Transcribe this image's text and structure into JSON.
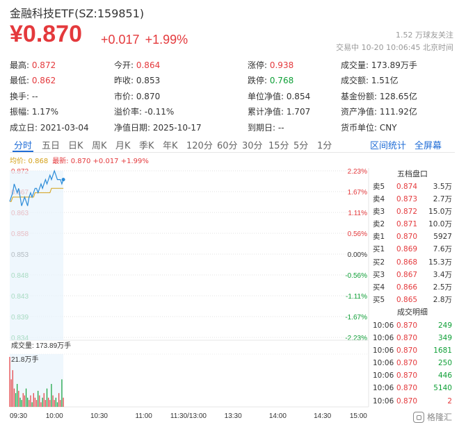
{
  "header": {
    "title": "金融科技ETF(SZ:159851)",
    "price": "¥0.870",
    "change": "+0.017",
    "change_pct": "+1.99%",
    "fans": "1.52 万球友关注",
    "status": "交易中 10-20 10:06:45 北京时间"
  },
  "stats": [
    [
      {
        "label": "最高:",
        "value": "0.872",
        "color": "red"
      },
      {
        "label": "今开:",
        "value": "0.864",
        "color": "red"
      },
      {
        "label": "涨停:",
        "value": "0.938",
        "color": "red"
      },
      {
        "label": "成交量:",
        "value": "173.89万手",
        "color": ""
      }
    ],
    [
      {
        "label": "最低:",
        "value": "0.862",
        "color": "red"
      },
      {
        "label": "昨收:",
        "value": "0.853",
        "color": ""
      },
      {
        "label": "跌停:",
        "value": "0.768",
        "color": "green"
      },
      {
        "label": "成交额:",
        "value": "1.51亿",
        "color": ""
      }
    ],
    [
      {
        "label": "换手:",
        "value": "--",
        "color": ""
      },
      {
        "label": "市价:",
        "value": "0.870",
        "color": ""
      },
      {
        "label": "单位净值:",
        "value": "0.854",
        "color": ""
      },
      {
        "label": "基金份额:",
        "value": "128.65亿",
        "color": ""
      }
    ],
    [
      {
        "label": "振幅:",
        "value": "1.17%",
        "color": ""
      },
      {
        "label": "溢价率:",
        "value": "-0.11%",
        "color": ""
      },
      {
        "label": "累计净值:",
        "value": "1.707",
        "color": ""
      },
      {
        "label": "资产净值:",
        "value": "111.92亿",
        "color": ""
      }
    ],
    [
      {
        "label": "成立日:",
        "value": "2021-03-04",
        "color": ""
      },
      {
        "label": "净值日期:",
        "value": "2025-10-17",
        "color": ""
      },
      {
        "label": "到期日:",
        "value": "--",
        "color": ""
      },
      {
        "label": "货币单位:",
        "value": "CNY",
        "color": ""
      }
    ]
  ],
  "tabs": [
    "分时",
    "五日",
    "日K",
    "周K",
    "月K",
    "季K",
    "年K",
    "120分",
    "60分",
    "30分",
    "15分",
    "5分",
    "1分"
  ],
  "tabs_right": [
    "区间统计",
    "全屏幕"
  ],
  "legend": {
    "avg": "均价: 0.868",
    "latest": "最新: 0.870 +0.017 +1.99%"
  },
  "chart_data": {
    "type": "line",
    "y_left_ticks": [
      "0.872",
      "0.867",
      "0.863",
      "0.858",
      "0.853",
      "0.848",
      "0.843",
      "0.839",
      "0.834"
    ],
    "y_right_ticks": [
      "2.23%",
      "1.67%",
      "1.11%",
      "0.56%",
      "0.00%",
      "-0.56%",
      "-1.11%",
      "-1.67%",
      "-2.23%"
    ],
    "x_ticks": [
      "09:30",
      "10:00",
      "10:30",
      "11:00",
      "11:30/13:00",
      "13:30",
      "14:00",
      "14:30",
      "15:00"
    ],
    "ylim": [
      0.834,
      0.872
    ],
    "prev_close": 0.853,
    "price_series": [
      0.865,
      0.866,
      0.867,
      0.869,
      0.868,
      0.867,
      0.868,
      0.866,
      0.864,
      0.865,
      0.866,
      0.865,
      0.864,
      0.866,
      0.867,
      0.866,
      0.867,
      0.868,
      0.868,
      0.867,
      0.868,
      0.869,
      0.868,
      0.869,
      0.87,
      0.869,
      0.87,
      0.871,
      0.87,
      0.871,
      0.872,
      0.871,
      0.87,
      0.87,
      0.87,
      0.869,
      0.87
    ],
    "avg_series": [
      0.865,
      0.865,
      0.866,
      0.866,
      0.866,
      0.866,
      0.866,
      0.866,
      0.866,
      0.866,
      0.866,
      0.866,
      0.866,
      0.866,
      0.866,
      0.866,
      0.866,
      0.867,
      0.867,
      0.867,
      0.867,
      0.867,
      0.867,
      0.867,
      0.867,
      0.867,
      0.867,
      0.867,
      0.868,
      0.868,
      0.868,
      0.868,
      0.868,
      0.868,
      0.868,
      0.868,
      0.868
    ],
    "volume_label": "成交量: 173.89万手",
    "volume_max_label": "21.8万手",
    "volume_series": [
      21.8,
      12,
      16,
      8,
      6,
      10,
      7,
      4,
      3,
      6,
      5,
      8,
      4,
      3,
      5,
      2,
      6,
      4,
      3,
      7,
      5,
      2,
      4,
      6,
      3,
      8,
      4,
      3,
      10,
      5,
      3,
      4,
      2,
      6,
      3,
      12,
      4
    ]
  },
  "orderbook": {
    "title": "五档盘口",
    "rows": [
      {
        "k": "卖5",
        "p": "0.874",
        "v": "3.5万"
      },
      {
        "k": "卖4",
        "p": "0.873",
        "v": "2.7万"
      },
      {
        "k": "卖3",
        "p": "0.872",
        "v": "15.0万"
      },
      {
        "k": "卖2",
        "p": "0.871",
        "v": "10.0万"
      },
      {
        "k": "卖1",
        "p": "0.870",
        "v": "5927"
      },
      {
        "k": "买1",
        "p": "0.869",
        "v": "7.6万"
      },
      {
        "k": "买2",
        "p": "0.868",
        "v": "15.3万"
      },
      {
        "k": "买3",
        "p": "0.867",
        "v": "3.4万"
      },
      {
        "k": "买4",
        "p": "0.866",
        "v": "2.5万"
      },
      {
        "k": "买5",
        "p": "0.865",
        "v": "2.8万"
      }
    ]
  },
  "trades": {
    "title": "成交明细",
    "rows": [
      {
        "t": "10:06",
        "p": "0.870",
        "v": "249",
        "c": "green"
      },
      {
        "t": "10:06",
        "p": "0.870",
        "v": "349",
        "c": "green"
      },
      {
        "t": "10:06",
        "p": "0.870",
        "v": "1681",
        "c": "green"
      },
      {
        "t": "10:06",
        "p": "0.870",
        "v": "250",
        "c": "green"
      },
      {
        "t": "10:06",
        "p": "0.870",
        "v": "446",
        "c": "green"
      },
      {
        "t": "10:06",
        "p": "0.870",
        "v": "5140",
        "c": "green"
      },
      {
        "t": "10:06",
        "p": "0.870",
        "v": "2",
        "c": "red"
      }
    ]
  },
  "watermark": "格隆汇",
  "colors": {
    "up": "#e4393c",
    "down": "#0e9f36",
    "accent": "#1f6cd6",
    "avg": "#d4a017",
    "line": "#2a8bd8"
  }
}
